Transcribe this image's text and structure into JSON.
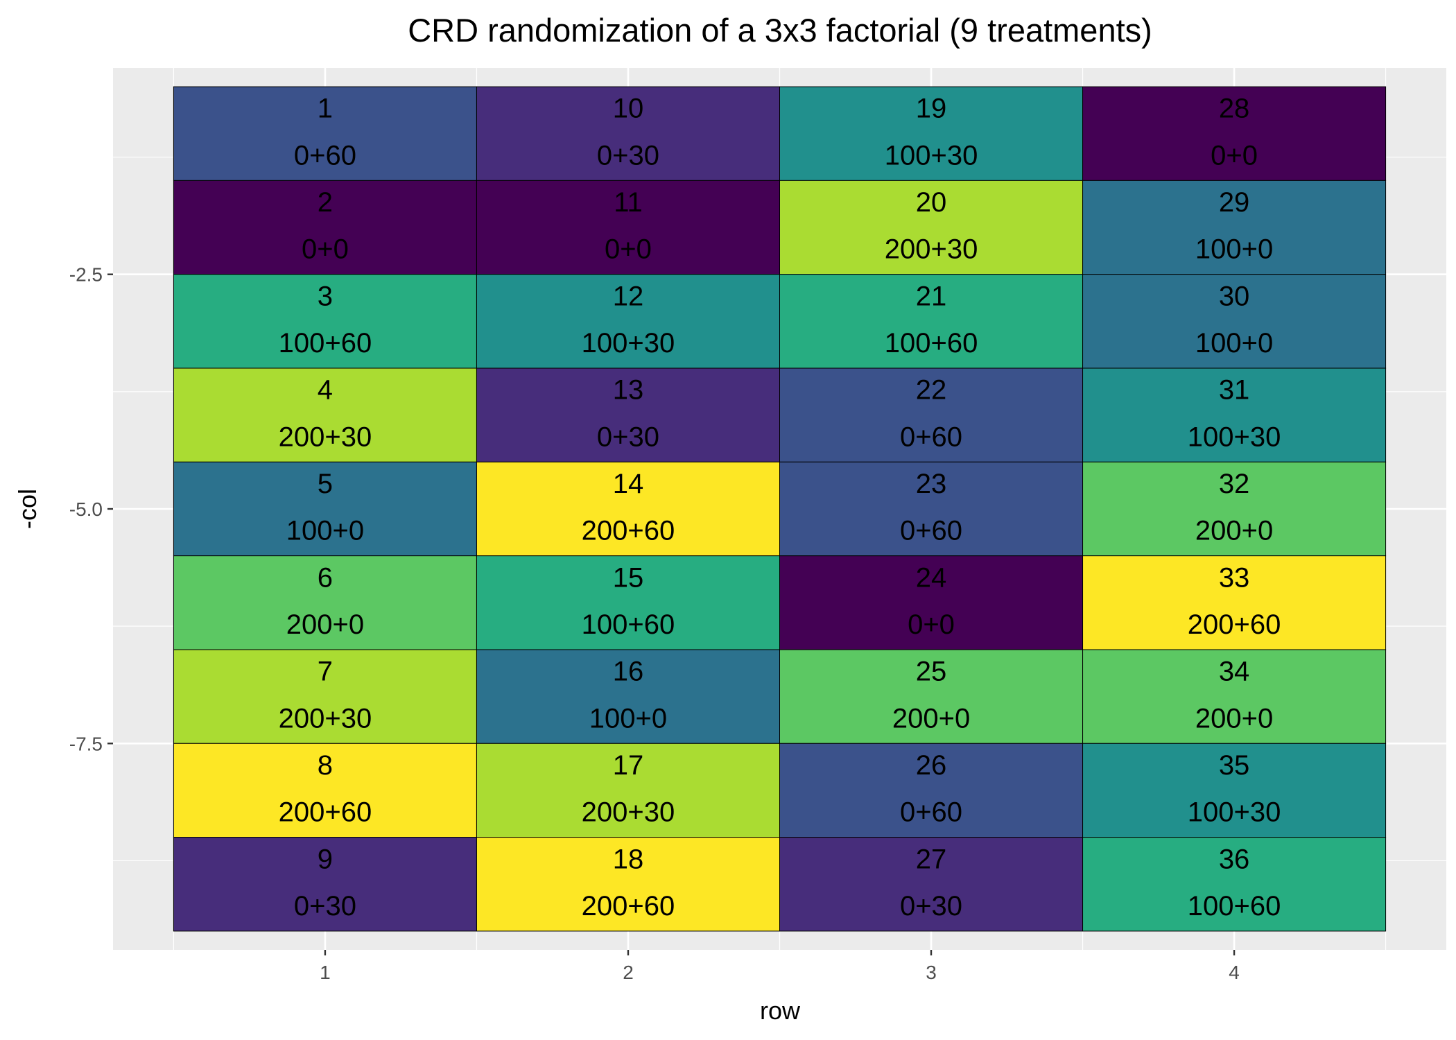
{
  "chart_data": {
    "type": "heatmap",
    "title": "CRD randomization of a 3x3 factorial (9 treatments)",
    "xlabel": "row",
    "ylabel": "-col",
    "x_ticks": [
      "1",
      "2",
      "3",
      "4"
    ],
    "y_ticks": [
      "-2.5",
      "-5.0",
      "-7.5"
    ],
    "xlim": [
      0.3,
      4.7
    ],
    "ylim": [
      -9.7,
      -0.3
    ],
    "grid": true,
    "legend": "none",
    "treatment_colors": {
      "0+0": "#440154",
      "0+30": "#472d7b",
      "0+60": "#3b528b",
      "100+0": "#2c728e",
      "100+30": "#21908d",
      "100+60": "#27ad81",
      "200+0": "#5cc863",
      "200+30": "#aadc32",
      "200+60": "#fde725"
    },
    "cells": [
      {
        "row": 1,
        "col": 1,
        "plot": "1",
        "treatment": "0+60"
      },
      {
        "row": 1,
        "col": 2,
        "plot": "2",
        "treatment": "0+0"
      },
      {
        "row": 1,
        "col": 3,
        "plot": "3",
        "treatment": "100+60"
      },
      {
        "row": 1,
        "col": 4,
        "plot": "4",
        "treatment": "200+30"
      },
      {
        "row": 1,
        "col": 5,
        "plot": "5",
        "treatment": "100+0"
      },
      {
        "row": 1,
        "col": 6,
        "plot": "6",
        "treatment": "200+0"
      },
      {
        "row": 1,
        "col": 7,
        "plot": "7",
        "treatment": "200+30"
      },
      {
        "row": 1,
        "col": 8,
        "plot": "8",
        "treatment": "200+60"
      },
      {
        "row": 1,
        "col": 9,
        "plot": "9",
        "treatment": "0+30"
      },
      {
        "row": 2,
        "col": 1,
        "plot": "10",
        "treatment": "0+30"
      },
      {
        "row": 2,
        "col": 2,
        "plot": "11",
        "treatment": "0+0"
      },
      {
        "row": 2,
        "col": 3,
        "plot": "12",
        "treatment": "100+30"
      },
      {
        "row": 2,
        "col": 4,
        "plot": "13",
        "treatment": "0+30"
      },
      {
        "row": 2,
        "col": 5,
        "plot": "14",
        "treatment": "200+60"
      },
      {
        "row": 2,
        "col": 6,
        "plot": "15",
        "treatment": "100+60"
      },
      {
        "row": 2,
        "col": 7,
        "plot": "16",
        "treatment": "100+0"
      },
      {
        "row": 2,
        "col": 8,
        "plot": "17",
        "treatment": "200+30"
      },
      {
        "row": 2,
        "col": 9,
        "plot": "18",
        "treatment": "200+60"
      },
      {
        "row": 3,
        "col": 1,
        "plot": "19",
        "treatment": "100+30"
      },
      {
        "row": 3,
        "col": 2,
        "plot": "20",
        "treatment": "200+30"
      },
      {
        "row": 3,
        "col": 3,
        "plot": "21",
        "treatment": "100+60"
      },
      {
        "row": 3,
        "col": 4,
        "plot": "22",
        "treatment": "0+60"
      },
      {
        "row": 3,
        "col": 5,
        "plot": "23",
        "treatment": "0+60"
      },
      {
        "row": 3,
        "col": 6,
        "plot": "24",
        "treatment": "0+0"
      },
      {
        "row": 3,
        "col": 7,
        "plot": "25",
        "treatment": "200+0"
      },
      {
        "row": 3,
        "col": 8,
        "plot": "26",
        "treatment": "0+60"
      },
      {
        "row": 3,
        "col": 9,
        "plot": "27",
        "treatment": "0+30"
      },
      {
        "row": 4,
        "col": 1,
        "plot": "28",
        "treatment": "0+0"
      },
      {
        "row": 4,
        "col": 2,
        "plot": "29",
        "treatment": "100+0"
      },
      {
        "row": 4,
        "col": 3,
        "plot": "30",
        "treatment": "100+0"
      },
      {
        "row": 4,
        "col": 4,
        "plot": "31",
        "treatment": "100+30"
      },
      {
        "row": 4,
        "col": 5,
        "plot": "32",
        "treatment": "200+0"
      },
      {
        "row": 4,
        "col": 6,
        "plot": "33",
        "treatment": "200+60"
      },
      {
        "row": 4,
        "col": 7,
        "plot": "34",
        "treatment": "200+0"
      },
      {
        "row": 4,
        "col": 8,
        "plot": "35",
        "treatment": "100+30"
      },
      {
        "row": 4,
        "col": 9,
        "plot": "36",
        "treatment": "100+60"
      }
    ]
  }
}
